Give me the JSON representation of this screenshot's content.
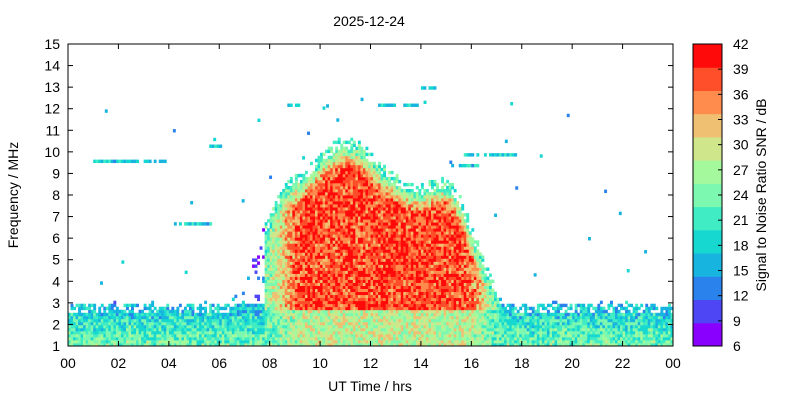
{
  "chart_data": {
    "type": "heatmap",
    "title": "2025-12-24",
    "xlabel": "UT Time / hrs",
    "ylabel": "Frequency / MHz",
    "colorbar_label": "Signal to Noise Ratio SNR / dB",
    "xlim": [
      0,
      24
    ],
    "ylim": [
      1,
      15
    ],
    "x_ticks": [
      "00",
      "02",
      "04",
      "06",
      "08",
      "10",
      "12",
      "14",
      "16",
      "18",
      "20",
      "22",
      "00"
    ],
    "y_ticks": [
      "1",
      "2",
      "3",
      "4",
      "5",
      "6",
      "7",
      "8",
      "9",
      "10",
      "11",
      "12",
      "13",
      "14",
      "15"
    ],
    "colorbar": {
      "range": [
        6,
        42
      ],
      "ticks": [
        "6",
        "9",
        "12",
        "15",
        "18",
        "21",
        "24",
        "27",
        "30",
        "33",
        "36",
        "39",
        "42"
      ],
      "colors": [
        "#8a00ff",
        "#4e46f5",
        "#2a82ec",
        "#18b4e0",
        "#17d8d0",
        "#40ecc4",
        "#7cf8b0",
        "#a4f99c",
        "#cfe68a",
        "#f0c072",
        "#ff8c4c",
        "#ff4e2a",
        "#ff0a0a"
      ]
    },
    "grid": false,
    "heatmap_summary": {
      "day_max_freq_MHz": 11.2,
      "peak_time_hrs": 11,
      "night_band_MHz": [
        1,
        3
      ],
      "peak_snr_dB": 42
    }
  }
}
